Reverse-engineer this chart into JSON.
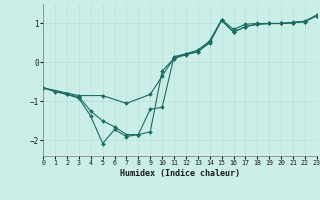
{
  "xlabel": "Humidex (Indice chaleur)",
  "background_color": "#cceee8",
  "grid_color": "#b8ddd8",
  "line_color": "#1a6b60",
  "x_ticks": [
    0,
    1,
    2,
    3,
    4,
    5,
    6,
    7,
    8,
    9,
    10,
    11,
    12,
    13,
    14,
    15,
    16,
    17,
    18,
    19,
    20,
    21,
    22,
    23
  ],
  "y_ticks": [
    -2,
    -1,
    0,
    1
  ],
  "ylim": [
    -2.4,
    1.5
  ],
  "xlim": [
    0,
    23
  ],
  "line1_x": [
    0,
    1,
    2,
    3,
    4,
    5,
    6,
    7,
    8,
    9,
    10,
    11,
    12,
    13,
    14,
    15,
    16,
    17,
    18,
    19,
    20,
    21,
    22,
    23
  ],
  "line1_y": [
    -0.65,
    -0.75,
    -0.82,
    -0.88,
    -1.25,
    -1.5,
    -1.65,
    -1.85,
    -1.85,
    -1.2,
    -1.15,
    0.15,
    0.22,
    0.28,
    0.5,
    1.08,
    0.78,
    0.92,
    0.98,
    1.0,
    1.0,
    1.02,
    1.05,
    1.2
  ],
  "line2_x": [
    0,
    2,
    3,
    4,
    5,
    6,
    7,
    8,
    9,
    10,
    11,
    12,
    13,
    14,
    15,
    16,
    17,
    18,
    19,
    20,
    21,
    22,
    23
  ],
  "line2_y": [
    -0.65,
    -0.82,
    -0.92,
    -1.38,
    -2.08,
    -1.72,
    -1.9,
    -1.85,
    -1.78,
    -0.22,
    0.1,
    0.2,
    0.27,
    0.55,
    1.08,
    0.78,
    0.92,
    0.98,
    1.0,
    1.0,
    1.02,
    1.05,
    1.2
  ],
  "line3_x": [
    0,
    3,
    5,
    7,
    9,
    10,
    11,
    12,
    13,
    14,
    15,
    16,
    17,
    18,
    19,
    20,
    21,
    22,
    23
  ],
  "line3_y": [
    -0.65,
    -0.85,
    -0.85,
    -1.05,
    -0.82,
    -0.35,
    0.12,
    0.22,
    0.32,
    0.55,
    1.1,
    0.85,
    0.98,
    1.0,
    1.0,
    1.0,
    1.03,
    1.06,
    1.22
  ]
}
